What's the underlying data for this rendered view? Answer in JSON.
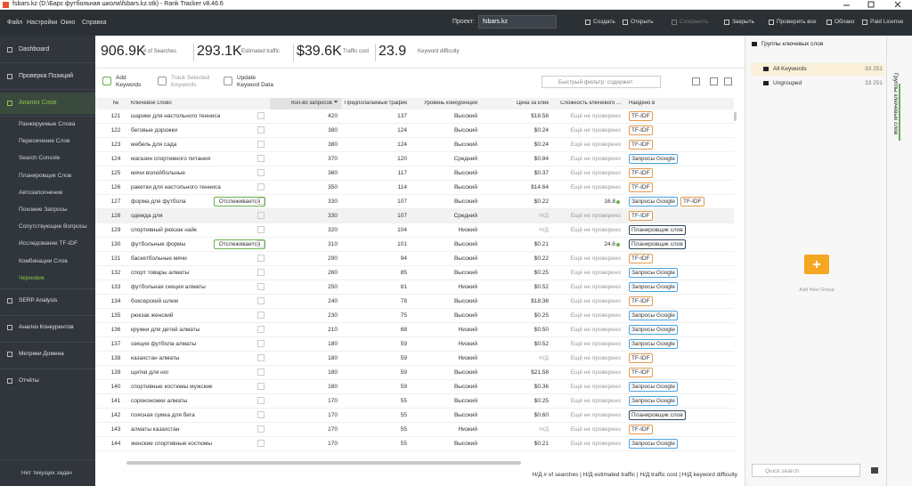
{
  "window": {
    "title": "fsbars.kz (D:\\Барс футбольная школа\\fsbars.kz.stk) - Rank Tracker v8.46.6"
  },
  "menu": [
    "Файл",
    "Настройки",
    "Окно",
    "Справка"
  ],
  "project": {
    "label": "Проект:",
    "value": "fsbars.kz"
  },
  "toolbar": [
    "Создать",
    "Открыть",
    "Сохранить",
    "Закрыть",
    "Проверить все",
    "Облако",
    "Paid License"
  ],
  "sidebar": {
    "top": [
      "Dashboard",
      "Проверка Позиций",
      "Анализ Слов"
    ],
    "sub": [
      "Ранжируемые Слова",
      "Пересечение Слов",
      "Search Console",
      "Планировщик Слов",
      "Автозаполнение",
      "Похожие Запросы",
      "Сопутствующие Вопросы",
      "Исследование TF-IDF",
      "Комбинации Слов",
      "Черновик"
    ],
    "bottom": [
      "SERP Analysis",
      "Анализ Конкурентов",
      "Метрики Домена",
      "Отчёты"
    ],
    "status": "Нет текущих задач"
  },
  "stats": [
    {
      "value": "906.9K",
      "label": "# of Searches"
    },
    {
      "value": "293.1K",
      "label": "Estimated traffic"
    },
    {
      "value": "$39.6K",
      "label": "Traffic cost"
    },
    {
      "value": "23.9",
      "label": "Keyword difficulty"
    }
  ],
  "actions": [
    [
      "Add",
      "Keywords"
    ],
    [
      "Track Selected",
      "Keywords"
    ],
    [
      "Update",
      "Keyword Data"
    ]
  ],
  "filter": "Быстрый фильтр: содержит",
  "table": {
    "columns": [
      "№",
      "Ключевое слово",
      "Кол-во запросов",
      "Предполагаемый трафик",
      "Уровень конкуренции",
      "Цена за клик",
      "Сложность ключевого ...",
      "Найдено в"
    ],
    "rows": [
      {
        "no": 121,
        "keyword": "шарики для настольного тенниса",
        "searches": 420,
        "traffic": 137,
        "competition": "Высокий",
        "cpc": "$18.58",
        "difficulty": "Ещё не проверено",
        "found": [
          "TF-IDF"
        ]
      },
      {
        "no": 122,
        "keyword": "беговые дорожки",
        "searches": 380,
        "traffic": 124,
        "competition": "Высокий",
        "cpc": "$0.24",
        "difficulty": "Ещё не проверено",
        "found": [
          "TF-IDF"
        ]
      },
      {
        "no": 123,
        "keyword": "мебель для сада",
        "searches": 380,
        "traffic": 124,
        "competition": "Высокий",
        "cpc": "$0.24",
        "difficulty": "Ещё не проверено",
        "found": [
          "TF-IDF"
        ]
      },
      {
        "no": 124,
        "keyword": "магазин спортивного питания",
        "searches": 370,
        "traffic": 120,
        "competition": "Средний",
        "cpc": "$0.84",
        "difficulty": "Ещё не проверено",
        "found": [
          "Запросы Google"
        ]
      },
      {
        "no": 125,
        "keyword": "мячи волейбольные",
        "searches": 360,
        "traffic": 117,
        "competition": "Высокий",
        "cpc": "$0.37",
        "difficulty": "Ещё не проверено",
        "found": [
          "TF-IDF"
        ]
      },
      {
        "no": 126,
        "keyword": "ракетки для настольного тенниса",
        "searches": 350,
        "traffic": 114,
        "competition": "Высокий",
        "cpc": "$14.64",
        "difficulty": "Ещё не проверено",
        "found": [
          "TF-IDF"
        ]
      },
      {
        "no": 127,
        "keyword": "форма для футбола",
        "status": "Отслеживается",
        "searches": 330,
        "traffic": 107,
        "competition": "Высокий",
        "cpc": "$0.22",
        "difficulty": 16.8,
        "found": [
          "Запросы Google",
          "TF-IDF"
        ]
      },
      {
        "no": 128,
        "keyword": "одежда для",
        "searches": 330,
        "traffic": 107,
        "competition": "Средний",
        "cpc": "Н/Д",
        "difficulty": "Ещё не проверено",
        "found": [
          "TF-IDF"
        ]
      },
      {
        "no": 129,
        "keyword": "спортивный рюкзак найк",
        "searches": 320,
        "traffic": 104,
        "competition": "Низкий",
        "cpc": "Н/Д",
        "difficulty": "Ещё не проверено",
        "found": [
          "Планировщик слов"
        ]
      },
      {
        "no": 130,
        "keyword": "футбольные формы",
        "status": "Отслеживается",
        "searches": 310,
        "traffic": 101,
        "competition": "Высокий",
        "cpc": "$0.21",
        "difficulty": 24.6,
        "found": [
          "Планировщик слов"
        ]
      },
      {
        "no": 131,
        "keyword": "баскетбольные мячи",
        "searches": 290,
        "traffic": 94,
        "competition": "Высокий",
        "cpc": "$0.22",
        "difficulty": "Ещё не проверено",
        "found": [
          "TF-IDF"
        ]
      },
      {
        "no": 132,
        "keyword": "спорт товары алматы",
        "searches": 260,
        "traffic": 85,
        "competition": "Высокий",
        "cpc": "$0.25",
        "difficulty": "Ещё не проверено",
        "found": [
          "Запросы Google"
        ]
      },
      {
        "no": 133,
        "keyword": "футбольная секция алматы",
        "searches": 250,
        "traffic": 81,
        "competition": "Низкий",
        "cpc": "$0.52",
        "difficulty": "Ещё не проверено",
        "found": [
          "Запросы Google"
        ]
      },
      {
        "no": 134,
        "keyword": "боксерский шлем",
        "searches": 240,
        "traffic": 78,
        "competition": "Высокий",
        "cpc": "$18.36",
        "difficulty": "Ещё не проверено",
        "found": [
          "TF-IDF"
        ]
      },
      {
        "no": 135,
        "keyword": "рюкзак женский",
        "searches": 230,
        "traffic": 75,
        "competition": "Высокий",
        "cpc": "$0.25",
        "difficulty": "Ещё не проверено",
        "found": [
          "Запросы Google"
        ]
      },
      {
        "no": 136,
        "keyword": "кружки для детей алматы",
        "searches": 210,
        "traffic": 68,
        "competition": "Низкий",
        "cpc": "$0.50",
        "difficulty": "Ещё не проверено",
        "found": [
          "Запросы Google"
        ]
      },
      {
        "no": 137,
        "keyword": "секция футбола алматы",
        "searches": 180,
        "traffic": 59,
        "competition": "Низкий",
        "cpc": "$0.52",
        "difficulty": "Ещё не проверено",
        "found": [
          "Запросы Google"
        ]
      },
      {
        "no": 138,
        "keyword": "казахстан алматы",
        "searches": 180,
        "traffic": 59,
        "competition": "Низкий",
        "cpc": "Н/Д",
        "difficulty": "Ещё не проверено",
        "found": [
          "TF-IDF"
        ]
      },
      {
        "no": 139,
        "keyword": "щитки для ног",
        "searches": 180,
        "traffic": 59,
        "competition": "Высокий",
        "cpc": "$21.58",
        "difficulty": "Ещё не проверено",
        "found": [
          "TF-IDF"
        ]
      },
      {
        "no": 140,
        "keyword": "спортивные костюмы мужские",
        "searches": 180,
        "traffic": 59,
        "competition": "Высокий",
        "cpc": "$0.36",
        "difficulty": "Ещё не проверено",
        "found": [
          "Запросы Google"
        ]
      },
      {
        "no": 141,
        "keyword": "сороконожки алматы",
        "searches": 170,
        "traffic": 55,
        "competition": "Высокий",
        "cpc": "$0.25",
        "difficulty": "Ещё не проверено",
        "found": [
          "Запросы Google"
        ]
      },
      {
        "no": 142,
        "keyword": "поясная сумка для бега",
        "searches": 170,
        "traffic": 55,
        "competition": "Высокий",
        "cpc": "$0.60",
        "difficulty": "Ещё не проверено",
        "found": [
          "Планировщик слов"
        ]
      },
      {
        "no": 143,
        "keyword": "алматы казахстан",
        "searches": 170,
        "traffic": 55,
        "competition": "Низкий",
        "cpc": "Н/Д",
        "difficulty": "Ещё не проверено",
        "found": [
          "TF-IDF"
        ]
      },
      {
        "no": 144,
        "keyword": "женские спортивные костюмы",
        "searches": 170,
        "traffic": 55,
        "competition": "Высокий",
        "cpc": "$0.21",
        "difficulty": "Ещё не проверено",
        "found": [
          "Запросы Google"
        ]
      }
    ]
  },
  "footer": "Н/Д # of searches | Н/Д estimated traffic | Н/Д traffic cost | Н/Д keyword difficulty",
  "groups": {
    "title": "Группы ключевых слов",
    "items": [
      {
        "name": "All Keywords",
        "count": "33 251"
      },
      {
        "name": "Ungrouped",
        "count": "33 251"
      }
    ],
    "add": "Add New Group",
    "search": "Quick search",
    "tab": "Группы ключевых слов"
  }
}
